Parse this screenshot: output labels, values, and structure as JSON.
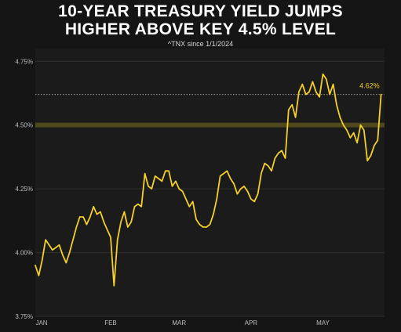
{
  "chart_data": {
    "type": "line",
    "title": "10-YEAR TREASURY YIELD JUMPS",
    "title_line2": "HIGHER ABOVE KEY 4.5% LEVEL",
    "subtitle": "^TNX since 1/1/2024",
    "yticks": [
      {
        "value": 3.75,
        "label": "3.75%"
      },
      {
        "value": 4.0,
        "label": "4.00%"
      },
      {
        "value": 4.25,
        "label": "4.25%"
      },
      {
        "value": 4.5,
        "label": "4.50%"
      },
      {
        "value": 4.75,
        "label": "4.75%"
      }
    ],
    "xticks": [
      {
        "x": 0,
        "label": "JAN"
      },
      {
        "x": 22,
        "label": "FEB"
      },
      {
        "x": 42,
        "label": "MAR"
      },
      {
        "x": 63,
        "label": "APR"
      },
      {
        "x": 84,
        "label": "MAY"
      }
    ],
    "ylim": [
      3.75,
      4.8
    ],
    "xlim": [
      0,
      102
    ],
    "last_label": "4.62%",
    "reference_lines": [
      {
        "value": 4.62,
        "style": "dotted",
        "color": "#9a9a9a"
      },
      {
        "value": 4.5,
        "style": "band",
        "color": "#8a7d1c"
      }
    ],
    "line_color": "#f3cf2a",
    "grid": true,
    "series": [
      {
        "x": [
          0,
          1,
          2,
          3,
          4,
          5,
          6,
          7,
          8,
          9,
          10,
          11,
          12,
          13,
          14,
          15,
          16,
          17,
          18,
          19,
          20,
          21,
          22,
          23,
          24,
          25,
          26,
          27,
          28,
          29,
          30,
          31,
          32,
          33,
          34,
          35,
          36,
          37,
          38,
          39,
          40,
          41,
          42,
          43,
          44,
          45,
          46,
          47,
          48,
          49,
          50,
          51,
          52,
          53,
          54,
          55,
          56,
          57,
          58,
          59,
          60,
          61,
          62,
          63,
          64,
          65,
          66,
          67,
          68,
          69,
          70,
          71,
          72,
          73,
          74,
          75,
          76,
          77,
          78,
          79,
          80,
          81,
          82,
          83,
          84,
          85,
          86,
          87,
          88,
          89,
          90,
          91,
          92,
          93,
          94,
          95,
          96,
          97,
          98,
          99,
          100,
          101
        ],
        "values": [
          3.95,
          3.91,
          3.97,
          4.05,
          4.03,
          4.01,
          4.02,
          4.03,
          3.99,
          3.96,
          4.0,
          4.05,
          4.1,
          4.14,
          4.14,
          4.11,
          4.14,
          4.18,
          4.15,
          4.16,
          4.12,
          4.09,
          4.06,
          3.87,
          4.05,
          4.12,
          4.16,
          4.1,
          4.12,
          4.18,
          4.19,
          4.18,
          4.31,
          4.26,
          4.25,
          4.3,
          4.29,
          4.28,
          4.32,
          4.32,
          4.26,
          4.28,
          4.25,
          4.24,
          4.21,
          4.18,
          4.2,
          4.13,
          4.11,
          4.1,
          4.1,
          4.11,
          4.15,
          4.21,
          4.3,
          4.31,
          4.32,
          4.29,
          4.27,
          4.23,
          4.25,
          4.26,
          4.24,
          4.21,
          4.2,
          4.23,
          4.31,
          4.35,
          4.34,
          4.32,
          4.37,
          4.39,
          4.4,
          4.37,
          4.56,
          4.58,
          4.53,
          4.63,
          4.66,
          4.62,
          4.63,
          4.67,
          4.63,
          4.61,
          4.7,
          4.68,
          4.62,
          4.66,
          4.58,
          4.53,
          4.5,
          4.48,
          4.45,
          4.47,
          4.43,
          4.5,
          4.48,
          4.36,
          4.38,
          4.42,
          4.44,
          4.62
        ]
      }
    ]
  }
}
